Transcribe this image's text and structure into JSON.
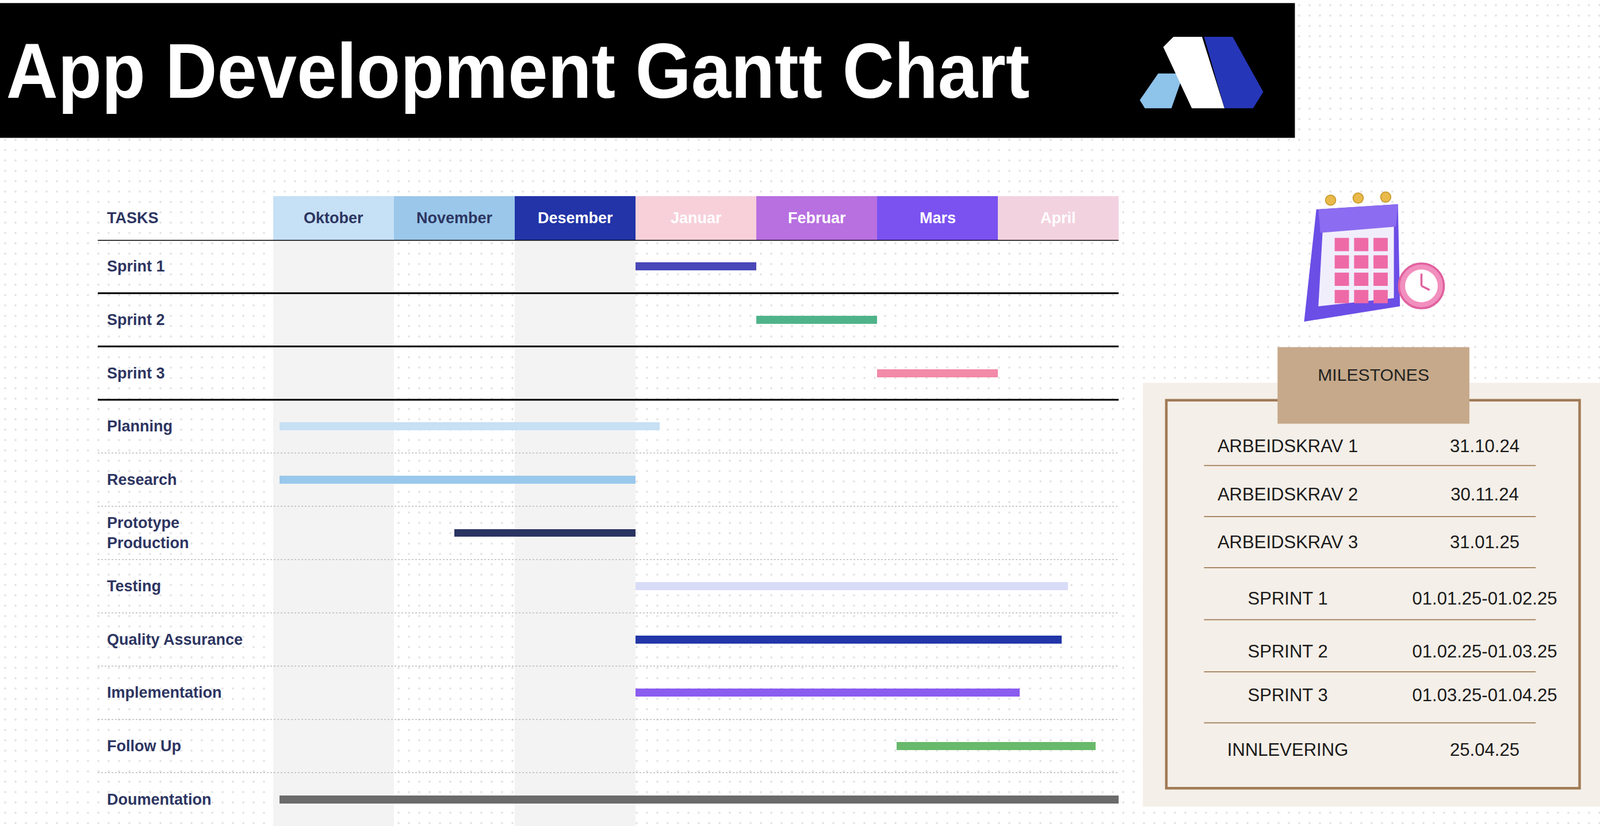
{
  "chart_data": {
    "type": "gantt",
    "title": "App Development Gantt Chart",
    "orientation": "horizontal",
    "y_label": "TASKS",
    "xlim": [
      0,
      7
    ],
    "xticks": [
      {
        "value": 0.5,
        "label": "Oktober"
      },
      {
        "value": 1.5,
        "label": "November"
      },
      {
        "value": 2.5,
        "label": "Desember"
      },
      {
        "value": 3.5,
        "label": "Januar"
      },
      {
        "value": 4.5,
        "label": "Februar"
      },
      {
        "value": 5.5,
        "label": "Mars"
      },
      {
        "value": 6.5,
        "label": "April"
      }
    ],
    "grid": false,
    "categories": [
      "Sprint 1",
      "Sprint 2",
      "Sprint 3",
      "Planning",
      "Research",
      "Prototype\nProduction",
      "Testing",
      "Quality Assurance",
      "Implementation",
      "Follow Up",
      "Doumentation"
    ],
    "start": [
      3,
      4,
      5,
      0.05,
      0.05,
      1.5,
      3.0,
      3.0,
      3.0,
      5.16,
      0.05
    ],
    "end": [
      4,
      5,
      6,
      3.2,
      3.0,
      3.0,
      6.58,
      6.53,
      6.18,
      6.81,
      7.0
    ],
    "colors": [
      "#4a47b8",
      "#4fb38a",
      "#f28aa8",
      "#c7e0f4",
      "#9ac8ec",
      "#2a3461",
      "#d8dcf7",
      "#2236a8",
      "#8a5cf0",
      "#68b96b",
      "#6b6b6b"
    ]
  },
  "milestones": {
    "title": "MILESTONES",
    "rows": [
      [
        "ARBEIDSKRAV 1",
        "31.10.24"
      ],
      [
        "ARBEIDSKRAV 2",
        "30.11.24"
      ],
      [
        "ARBEIDSKRAV 3",
        "31.01.25"
      ],
      [
        "SPRINT 1",
        "01.01.25-01.02.25"
      ],
      [
        "SPRINT 2",
        "01.02.25-01.03.25"
      ],
      [
        "SPRINT 3",
        "01.03.25-01.04.25"
      ],
      [
        "INNLEVERING",
        "25.04.25"
      ]
    ]
  }
}
